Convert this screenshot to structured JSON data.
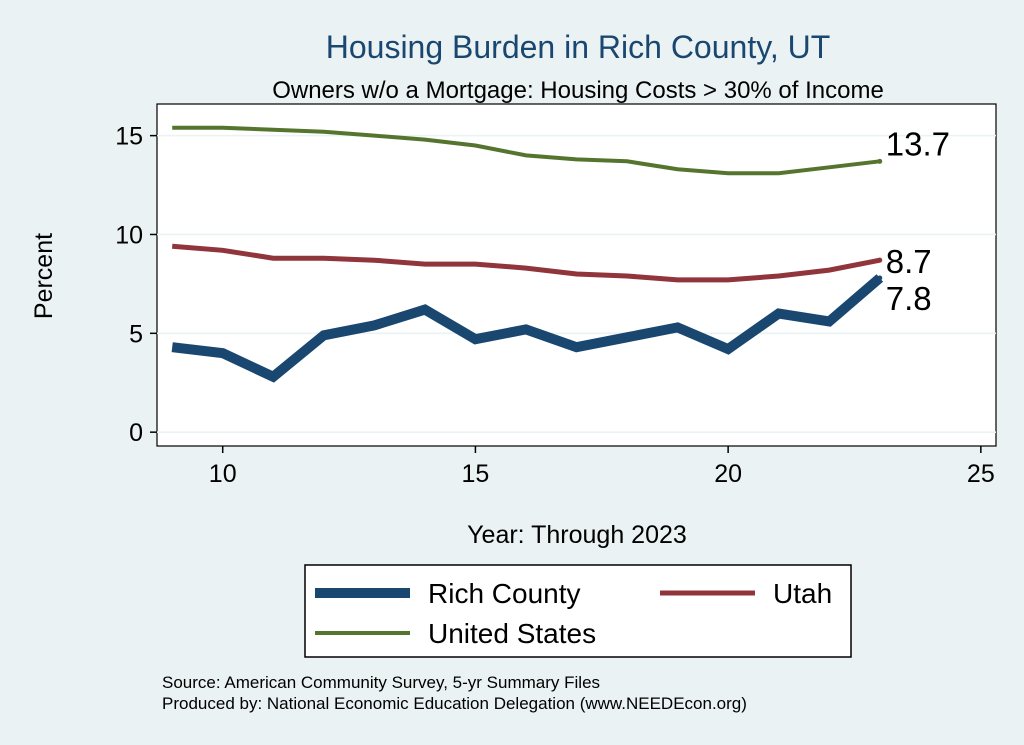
{
  "chart_data": {
    "type": "line",
    "title": "Housing Burden in Rich County, UT",
    "subtitle": "Owners w/o a Mortgage: Housing Costs > 30% of Income",
    "xlabel": "Year: Through 2023",
    "ylabel": "Percent",
    "xlim": [
      8.7,
      25.3
    ],
    "ylim": [
      -0.7,
      16.6
    ],
    "xticks": [
      10,
      15,
      20,
      25
    ],
    "yticks": [
      0,
      5,
      10,
      15
    ],
    "grid": true,
    "x": [
      9,
      10,
      11,
      12,
      13,
      14,
      15,
      16,
      17,
      18,
      19,
      20,
      21,
      22,
      23
    ],
    "series": [
      {
        "name": "Rich County",
        "color": "#1a476f",
        "values": [
          4.3,
          4.0,
          2.8,
          4.9,
          5.4,
          6.2,
          4.7,
          5.2,
          4.3,
          4.8,
          5.3,
          4.2,
          6.0,
          5.6,
          7.8
        ],
        "end_label": "7.8"
      },
      {
        "name": "Utah",
        "color": "#90353b",
        "values": [
          9.4,
          9.2,
          8.8,
          8.8,
          8.7,
          8.5,
          8.5,
          8.3,
          8.0,
          7.9,
          7.7,
          7.7,
          7.9,
          8.2,
          8.7
        ],
        "end_label": "8.7"
      },
      {
        "name": "United States",
        "color": "#55752f",
        "values": [
          15.4,
          15.4,
          15.3,
          15.2,
          15.0,
          14.8,
          14.5,
          14.0,
          13.8,
          13.7,
          13.3,
          13.1,
          13.1,
          13.4,
          13.7
        ],
        "end_label": "13.7"
      }
    ],
    "legend_position": "bottom",
    "legend": [
      "Rich County",
      "Utah",
      "United States"
    ]
  },
  "footer": {
    "source": "Source: American Community Survey, 5-yr Summary Files",
    "produced": "Produced by: National Economic Education Delegation (www.NEEDEcon.org)"
  }
}
